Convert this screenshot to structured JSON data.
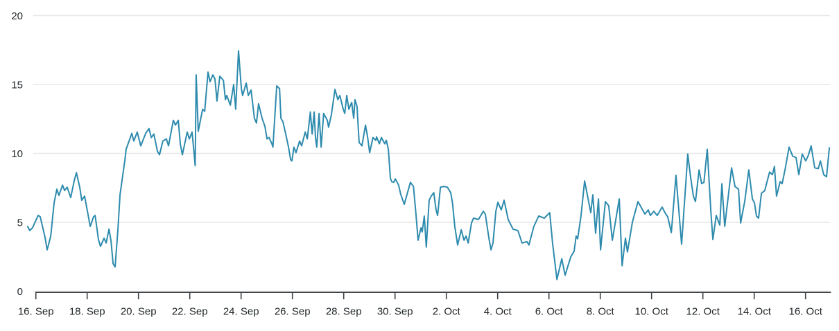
{
  "page": {
    "background": "#ffffff"
  },
  "chart_data": {
    "type": "line",
    "title": "",
    "legend": {
      "show": false
    },
    "grid": {
      "show": true,
      "color": "#e7e7e7"
    },
    "x_axis": {
      "kind": "date",
      "axis_color": "#3c4043",
      "label_color": "#22272a",
      "tick_labels": [
        "16. Sep",
        "18. Sep",
        "20. Sep",
        "22. Sep",
        "24. Sep",
        "26. Sep",
        "28. Sep",
        "30. Sep",
        "2. Oct",
        "4. Oct",
        "6. Oct",
        "8. Oct",
        "10. Oct",
        "12. Oct",
        "14. Oct",
        "16. Oct"
      ],
      "tick_day_offsets": [
        0,
        2,
        4,
        6,
        8,
        10,
        12,
        14,
        16,
        18,
        20,
        22,
        24,
        26,
        28,
        30
      ],
      "min_day": -0.35,
      "max_day": 31
    },
    "y_axis": {
      "tick_labels": [
        "0",
        "5",
        "10",
        "15",
        "20"
      ],
      "tick_values": [
        0,
        5,
        10,
        15,
        20
      ],
      "min": 0,
      "max": 20,
      "label_color": "#22272a"
    },
    "series": [
      {
        "name": "value",
        "color": "#2e8bad",
        "points": [
          [
            -0.32,
            4.7
          ],
          [
            -0.24,
            4.4
          ],
          [
            -0.13,
            4.6
          ],
          [
            0.09,
            5.5
          ],
          [
            0.17,
            5.4
          ],
          [
            0.36,
            3.9
          ],
          [
            0.44,
            3.0
          ],
          [
            0.58,
            4.0
          ],
          [
            0.71,
            6.4
          ],
          [
            0.82,
            7.4
          ],
          [
            0.9,
            6.95
          ],
          [
            1.04,
            7.7
          ],
          [
            1.12,
            7.3
          ],
          [
            1.22,
            7.55
          ],
          [
            1.36,
            6.8
          ],
          [
            1.5,
            8.05
          ],
          [
            1.58,
            8.6
          ],
          [
            1.71,
            7.55
          ],
          [
            1.79,
            6.6
          ],
          [
            1.9,
            6.9
          ],
          [
            2.04,
            5.5
          ],
          [
            2.12,
            4.7
          ],
          [
            2.25,
            5.4
          ],
          [
            2.31,
            5.5
          ],
          [
            2.44,
            3.75
          ],
          [
            2.52,
            3.25
          ],
          [
            2.66,
            3.85
          ],
          [
            2.74,
            3.5
          ],
          [
            2.85,
            4.5
          ],
          [
            2.93,
            3.65
          ],
          [
            3.01,
            2.0
          ],
          [
            3.09,
            1.76
          ],
          [
            3.2,
            4.5
          ],
          [
            3.28,
            7.0
          ],
          [
            3.47,
            9.5
          ],
          [
            3.52,
            10.3
          ],
          [
            3.74,
            11.45
          ],
          [
            3.82,
            10.9
          ],
          [
            3.95,
            11.55
          ],
          [
            4.09,
            10.55
          ],
          [
            4.28,
            11.45
          ],
          [
            4.41,
            11.8
          ],
          [
            4.5,
            11.15
          ],
          [
            4.6,
            11.4
          ],
          [
            4.74,
            10.15
          ],
          [
            4.82,
            9.9
          ],
          [
            4.95,
            10.9
          ],
          [
            5.09,
            11.05
          ],
          [
            5.17,
            10.55
          ],
          [
            5.36,
            12.4
          ],
          [
            5.44,
            12.05
          ],
          [
            5.55,
            12.4
          ],
          [
            5.63,
            10.7
          ],
          [
            5.71,
            9.9
          ],
          [
            5.9,
            11.55
          ],
          [
            5.98,
            11.05
          ],
          [
            6.09,
            11.55
          ],
          [
            6.17,
            9.95
          ],
          [
            6.21,
            9.1
          ],
          [
            6.25,
            15.7
          ],
          [
            6.33,
            11.6
          ],
          [
            6.5,
            13.2
          ],
          [
            6.58,
            13.05
          ],
          [
            6.71,
            15.9
          ],
          [
            6.79,
            15.2
          ],
          [
            6.9,
            15.7
          ],
          [
            6.98,
            15.4
          ],
          [
            7.06,
            13.8
          ],
          [
            7.17,
            15.6
          ],
          [
            7.31,
            15.3
          ],
          [
            7.39,
            13.9
          ],
          [
            7.44,
            14.2
          ],
          [
            7.58,
            13.5
          ],
          [
            7.71,
            15.0
          ],
          [
            7.79,
            13.2
          ],
          [
            7.9,
            17.45
          ],
          [
            8.01,
            14.7
          ],
          [
            8.06,
            14.2
          ],
          [
            8.2,
            15.1
          ],
          [
            8.28,
            14.2
          ],
          [
            8.39,
            14.6
          ],
          [
            8.52,
            12.55
          ],
          [
            8.6,
            12.2
          ],
          [
            8.68,
            13.6
          ],
          [
            8.82,
            12.55
          ],
          [
            8.93,
            11.95
          ],
          [
            9.01,
            11.05
          ],
          [
            9.09,
            11.15
          ],
          [
            9.2,
            10.7
          ],
          [
            9.24,
            10.45
          ],
          [
            9.39,
            14.9
          ],
          [
            9.5,
            14.7
          ],
          [
            9.55,
            12.55
          ],
          [
            9.63,
            12.3
          ],
          [
            9.74,
            11.4
          ],
          [
            9.85,
            10.45
          ],
          [
            9.93,
            9.55
          ],
          [
            9.98,
            9.45
          ],
          [
            10.06,
            10.45
          ],
          [
            10.14,
            10.05
          ],
          [
            10.28,
            10.9
          ],
          [
            10.36,
            10.55
          ],
          [
            10.5,
            11.55
          ],
          [
            10.58,
            11.05
          ],
          [
            10.7,
            13.0
          ],
          [
            10.77,
            11.4
          ],
          [
            10.85,
            13.0
          ],
          [
            10.9,
            11.15
          ],
          [
            10.95,
            10.45
          ],
          [
            11.04,
            12.9
          ],
          [
            11.12,
            10.45
          ],
          [
            11.22,
            12.9
          ],
          [
            11.36,
            12.4
          ],
          [
            11.41,
            11.9
          ],
          [
            11.52,
            12.8
          ],
          [
            11.66,
            14.65
          ],
          [
            11.77,
            13.9
          ],
          [
            11.85,
            14.2
          ],
          [
            11.98,
            13.2
          ],
          [
            12.04,
            12.9
          ],
          [
            12.12,
            14.2
          ],
          [
            12.2,
            13.2
          ],
          [
            12.31,
            13.7
          ],
          [
            12.39,
            12.55
          ],
          [
            12.44,
            13.9
          ],
          [
            12.52,
            13.4
          ],
          [
            12.6,
            10.8
          ],
          [
            12.71,
            10.55
          ],
          [
            12.85,
            12.05
          ],
          [
            12.93,
            11.2
          ],
          [
            13.01,
            10.05
          ],
          [
            13.14,
            11.15
          ],
          [
            13.25,
            10.95
          ],
          [
            13.28,
            11.2
          ],
          [
            13.39,
            10.7
          ],
          [
            13.47,
            11.15
          ],
          [
            13.6,
            10.7
          ],
          [
            13.66,
            10.95
          ],
          [
            13.74,
            10.3
          ],
          [
            13.82,
            8.2
          ],
          [
            13.87,
            7.95
          ],
          [
            13.95,
            7.9
          ],
          [
            14.01,
            8.15
          ],
          [
            14.14,
            7.7
          ],
          [
            14.22,
            7.05
          ],
          [
            14.36,
            6.3
          ],
          [
            14.6,
            7.9
          ],
          [
            14.72,
            7.6
          ],
          [
            14.81,
            5.7
          ],
          [
            14.9,
            3.7
          ],
          [
            15.01,
            4.6
          ],
          [
            15.06,
            4.3
          ],
          [
            15.14,
            5.45
          ],
          [
            15.22,
            3.2
          ],
          [
            15.33,
            6.6
          ],
          [
            15.41,
            6.9
          ],
          [
            15.51,
            7.15
          ],
          [
            15.6,
            5.9
          ],
          [
            15.66,
            5.5
          ],
          [
            15.77,
            7.55
          ],
          [
            15.9,
            7.6
          ],
          [
            16.04,
            7.55
          ],
          [
            16.17,
            7.15
          ],
          [
            16.24,
            6.4
          ],
          [
            16.33,
            4.7
          ],
          [
            16.44,
            3.35
          ],
          [
            16.58,
            4.45
          ],
          [
            16.69,
            3.7
          ],
          [
            16.77,
            4.0
          ],
          [
            16.85,
            3.5
          ],
          [
            16.98,
            4.95
          ],
          [
            17.06,
            5.3
          ],
          [
            17.25,
            5.2
          ],
          [
            17.44,
            5.8
          ],
          [
            17.52,
            5.6
          ],
          [
            17.66,
            3.85
          ],
          [
            17.74,
            3.0
          ],
          [
            17.82,
            3.5
          ],
          [
            17.93,
            5.8
          ],
          [
            18.01,
            6.45
          ],
          [
            18.14,
            5.9
          ],
          [
            18.25,
            6.6
          ],
          [
            18.41,
            5.2
          ],
          [
            18.6,
            4.5
          ],
          [
            18.79,
            4.4
          ],
          [
            18.95,
            3.5
          ],
          [
            19.14,
            3.6
          ],
          [
            19.22,
            3.35
          ],
          [
            19.41,
            4.7
          ],
          [
            19.6,
            5.45
          ],
          [
            19.82,
            5.3
          ],
          [
            20.03,
            5.7
          ],
          [
            20.14,
            3.5
          ],
          [
            20.31,
            0.85
          ],
          [
            20.5,
            2.35
          ],
          [
            20.63,
            1.16
          ],
          [
            20.85,
            2.5
          ],
          [
            20.98,
            2.9
          ],
          [
            21.06,
            4.0
          ],
          [
            21.12,
            3.8
          ],
          [
            21.25,
            5.5
          ],
          [
            21.39,
            8.0
          ],
          [
            21.63,
            5.7
          ],
          [
            21.71,
            7.0
          ],
          [
            21.82,
            4.2
          ],
          [
            21.93,
            6.7
          ],
          [
            22.01,
            3.0
          ],
          [
            22.2,
            6.5
          ],
          [
            22.33,
            6.2
          ],
          [
            22.47,
            3.7
          ],
          [
            22.74,
            6.7
          ],
          [
            22.85,
            1.85
          ],
          [
            22.98,
            3.85
          ],
          [
            23.06,
            2.85
          ],
          [
            23.25,
            5.0
          ],
          [
            23.47,
            6.5
          ],
          [
            23.74,
            5.6
          ],
          [
            23.87,
            5.9
          ],
          [
            23.95,
            5.5
          ],
          [
            24.09,
            5.8
          ],
          [
            24.22,
            5.5
          ],
          [
            24.41,
            6.1
          ],
          [
            24.55,
            5.6
          ],
          [
            24.63,
            5.4
          ],
          [
            24.77,
            4.25
          ],
          [
            24.95,
            8.4
          ],
          [
            25.17,
            3.4
          ],
          [
            25.35,
            8.3
          ],
          [
            25.41,
            9.95
          ],
          [
            25.52,
            8.3
          ],
          [
            25.63,
            6.9
          ],
          [
            25.71,
            6.5
          ],
          [
            25.85,
            8.8
          ],
          [
            25.95,
            7.8
          ],
          [
            26.04,
            7.9
          ],
          [
            26.17,
            10.3
          ],
          [
            26.31,
            5.8
          ],
          [
            26.39,
            3.75
          ],
          [
            26.52,
            5.5
          ],
          [
            26.66,
            4.8
          ],
          [
            26.74,
            7.8
          ],
          [
            26.85,
            4.7
          ],
          [
            27.12,
            8.95
          ],
          [
            27.25,
            7.6
          ],
          [
            27.39,
            7.4
          ],
          [
            27.47,
            4.95
          ],
          [
            27.63,
            6.5
          ],
          [
            27.79,
            8.8
          ],
          [
            27.93,
            6.7
          ],
          [
            28.01,
            6.4
          ],
          [
            28.09,
            5.45
          ],
          [
            28.17,
            5.3
          ],
          [
            28.28,
            7.1
          ],
          [
            28.41,
            7.3
          ],
          [
            28.6,
            8.65
          ],
          [
            28.71,
            8.45
          ],
          [
            28.79,
            9.05
          ],
          [
            28.87,
            6.9
          ],
          [
            29.01,
            7.95
          ],
          [
            29.09,
            7.8
          ],
          [
            29.2,
            8.8
          ],
          [
            29.36,
            10.45
          ],
          [
            29.5,
            9.8
          ],
          [
            29.63,
            9.7
          ],
          [
            29.74,
            8.45
          ],
          [
            29.87,
            9.95
          ],
          [
            30.01,
            9.45
          ],
          [
            30.12,
            9.9
          ],
          [
            30.22,
            10.55
          ],
          [
            30.36,
            8.95
          ],
          [
            30.5,
            8.9
          ],
          [
            30.58,
            9.45
          ],
          [
            30.71,
            8.45
          ],
          [
            30.82,
            8.3
          ],
          [
            30.93,
            10.4
          ]
        ]
      }
    ]
  }
}
